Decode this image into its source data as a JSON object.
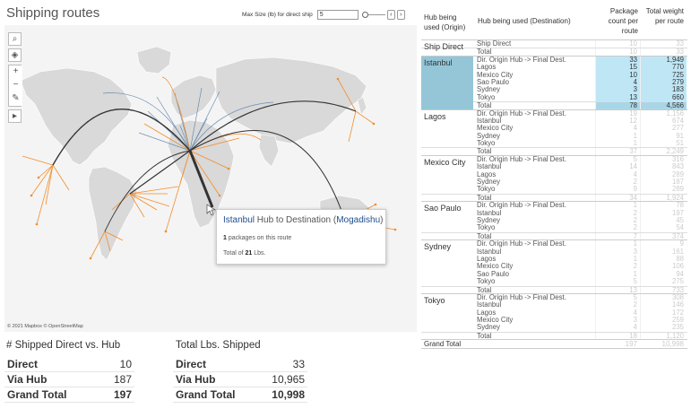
{
  "map": {
    "title": "Shipping routes",
    "max_size_label": "Max Size (lb) for direct ship",
    "max_size_value": "5",
    "attribution": "© 2021 Mapbox © OpenStreetMap",
    "colors": {
      "hub_route": "#333333",
      "hub_to_dest": "#f28e2b",
      "direct": "#4e79a7",
      "land": "#d9d9d9",
      "water": "#f4f4f4"
    },
    "tools": [
      "search-icon",
      "layers-icon",
      "zoom-in-icon",
      "zoom-out-icon",
      "pin-icon",
      "play-icon"
    ]
  },
  "tooltip": {
    "origin": "Istanbul",
    "middle": " Hub to Destination (",
    "dest": "Mogadishu",
    "end": ")",
    "count": "1",
    "count_text": " packages on this route",
    "total_prefix": "Total of ",
    "total_value": "21",
    "total_suffix": " Lbs."
  },
  "shipped_table": {
    "title": "# Shipped Direct vs. Hub",
    "rows": [
      {
        "label": "Direct",
        "value": "10"
      },
      {
        "label": "Via Hub",
        "value": "187"
      },
      {
        "label": "Grand Total",
        "value": "197"
      }
    ]
  },
  "lbs_table": {
    "title": "Total Lbs. Shipped",
    "rows": [
      {
        "label": "Direct",
        "value": "33"
      },
      {
        "label": "Via Hub",
        "value": "10,965"
      },
      {
        "label": "Grand Total",
        "value": "10,998"
      }
    ]
  },
  "hub_table": {
    "headers": {
      "origin": "Hub being used (Origin)",
      "destination": "Hub being used (Destination)",
      "count": "Package count per route",
      "weight": "Total weight per route"
    },
    "groups": [
      {
        "origin": "Ship Direct",
        "highlight": false,
        "rows": [
          {
            "dest": "Ship Direct",
            "count": "10",
            "weight": "33"
          },
          {
            "dest": "Total",
            "count": "10",
            "weight": "33"
          }
        ]
      },
      {
        "origin": "Istanbul",
        "highlight": true,
        "rows": [
          {
            "dest": "Dir. Origin Hub -> Final Dest.",
            "count": "33",
            "weight": "1,949"
          },
          {
            "dest": "Lagos",
            "count": "15",
            "weight": "770"
          },
          {
            "dest": "Mexico City",
            "count": "10",
            "weight": "725"
          },
          {
            "dest": "Sao Paulo",
            "count": "4",
            "weight": "279"
          },
          {
            "dest": "Sydney",
            "count": "3",
            "weight": "183"
          },
          {
            "dest": "Tokyo",
            "count": "13",
            "weight": "660"
          },
          {
            "dest": "Total",
            "count": "78",
            "weight": "4,566"
          }
        ]
      },
      {
        "origin": "Lagos",
        "highlight": false,
        "rows": [
          {
            "dest": "Dir. Origin Hub -> Final Dest.",
            "count": "19",
            "weight": "1,156"
          },
          {
            "dest": "Istanbul",
            "count": "12",
            "weight": "674"
          },
          {
            "dest": "Mexico City",
            "count": "4",
            "weight": "277"
          },
          {
            "dest": "Sydney",
            "count": "1",
            "weight": "91"
          },
          {
            "dest": "Tokyo",
            "count": "1",
            "weight": "51"
          },
          {
            "dest": "Total",
            "count": "37",
            "weight": "2,249"
          }
        ]
      },
      {
        "origin": "Mexico City",
        "highlight": false,
        "rows": [
          {
            "dest": "Dir. Origin Hub -> Final Dest.",
            "count": "5",
            "weight": "316"
          },
          {
            "dest": "Istanbul",
            "count": "14",
            "weight": "843"
          },
          {
            "dest": "Lagos",
            "count": "4",
            "weight": "289"
          },
          {
            "dest": "Sydney",
            "count": "2",
            "weight": "187"
          },
          {
            "dest": "Tokyo",
            "count": "9",
            "weight": "289"
          },
          {
            "dest": "Total",
            "count": "34",
            "weight": "1,924"
          }
        ]
      },
      {
        "origin": "Sao Paulo",
        "highlight": false,
        "rows": [
          {
            "dest": "Dir. Origin Hub -> Final Dest.",
            "count": "1",
            "weight": "78"
          },
          {
            "dest": "Istanbul",
            "count": "2",
            "weight": "197"
          },
          {
            "dest": "Sydney",
            "count": "2",
            "weight": "45"
          },
          {
            "dest": "Tokyo",
            "count": "2",
            "weight": "54"
          },
          {
            "dest": "Total",
            "count": "7",
            "weight": "374"
          }
        ]
      },
      {
        "origin": "Sydney",
        "highlight": false,
        "rows": [
          {
            "dest": "Dir. Origin Hub -> Final Dest.",
            "count": "1",
            "weight": "9"
          },
          {
            "dest": "Istanbul",
            "count": "3",
            "weight": "161"
          },
          {
            "dest": "Lagos",
            "count": "1",
            "weight": "88"
          },
          {
            "dest": "Mexico City",
            "count": "2",
            "weight": "106"
          },
          {
            "dest": "Sao Paulo",
            "count": "1",
            "weight": "94"
          },
          {
            "dest": "Tokyo",
            "count": "5",
            "weight": "275"
          },
          {
            "dest": "Total",
            "count": "13",
            "weight": "733"
          }
        ]
      },
      {
        "origin": "Tokyo",
        "highlight": false,
        "rows": [
          {
            "dest": "Dir. Origin Hub -> Final Dest.",
            "count": "5",
            "weight": "308"
          },
          {
            "dest": "Istanbul",
            "count": "2",
            "weight": "146"
          },
          {
            "dest": "Lagos",
            "count": "4",
            "weight": "172"
          },
          {
            "dest": "Mexico City",
            "count": "3",
            "weight": "259"
          },
          {
            "dest": "Sydney",
            "count": "4",
            "weight": "235"
          },
          {
            "dest": "Total",
            "count": "18",
            "weight": "1,120"
          }
        ]
      }
    ],
    "grand_total": {
      "label": "Grand Total",
      "count": "197",
      "weight": "10,998"
    }
  }
}
